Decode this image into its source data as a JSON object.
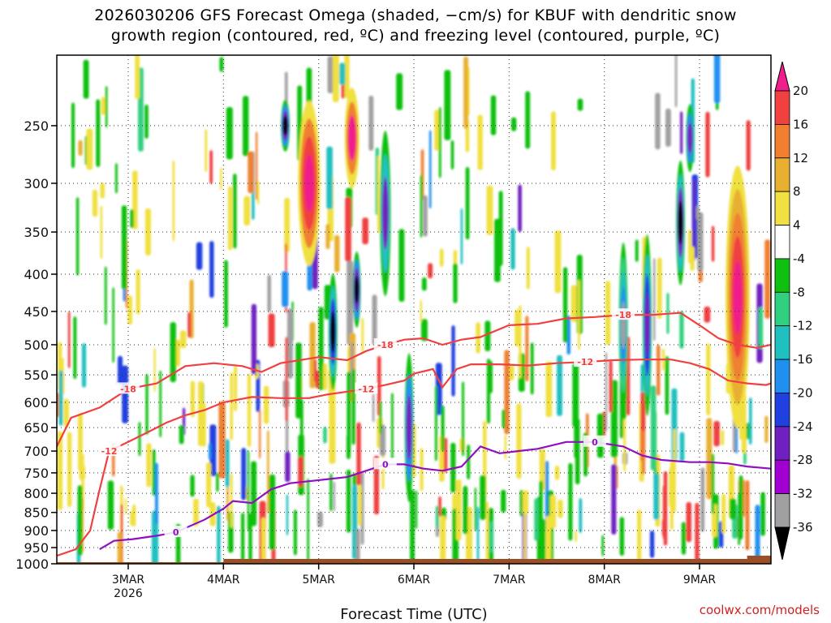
{
  "header": {
    "title_line1": "2026030206 GFS Forecast Omega (shaded, −cm/s) for KBUF with dendritic snow",
    "title_line2": "growth region (contoured, red, ºC) and freezing level (contoured, purple, ºC)"
  },
  "watermark": "coolwx.com/models",
  "chart_data": {
    "type": "heatmap",
    "title": "2026030206 GFS Forecast Omega (shaded, −cm/s) for KBUF with dendritic snow growth region (contoured, red, ºC) and freezing level (contoured, purple, ºC)",
    "xlabel": "Forecast Time (UTC)",
    "ylabel": "",
    "x_ticks": [
      {
        "label": "3MAR",
        "sub": "2026",
        "day": 3
      },
      {
        "label": "4MAR",
        "sub": "",
        "day": 4
      },
      {
        "label": "5MAR",
        "sub": "",
        "day": 5
      },
      {
        "label": "6MAR",
        "sub": "",
        "day": 6
      },
      {
        "label": "7MAR",
        "sub": "",
        "day": 7
      },
      {
        "label": "8MAR",
        "sub": "",
        "day": 8
      },
      {
        "label": "9MAR",
        "sub": "",
        "day": 9
      }
    ],
    "xlim": [
      2.25,
      9.75
    ],
    "y_ticks": [
      250,
      300,
      350,
      400,
      450,
      500,
      550,
      600,
      650,
      700,
      750,
      800,
      850,
      900,
      950,
      1000
    ],
    "ylim": [
      200,
      1000
    ],
    "y_axis": "pressure (hPa, log scale, inverted)",
    "grid": "dotted",
    "colorbar": {
      "labels": [
        "20",
        "16",
        "12",
        "8",
        "4",
        "-4",
        "-8",
        "-12",
        "-16",
        "-20",
        "-24",
        "-28",
        "-32",
        "-36"
      ],
      "colors": [
        "#f01e8c",
        "#f04040",
        "#f08030",
        "#e8b030",
        "#f0e040",
        "#ffffff",
        "#10c010",
        "#30d080",
        "#20c0c0",
        "#2090f0",
        "#2040e0",
        "#7020c0",
        "#a000d0",
        "#a0a0a0",
        "#000000"
      ]
    },
    "contours": [
      {
        "name": "-18",
        "color": "#f04040",
        "label": "-18",
        "points": [
          [
            2.25,
            690
          ],
          [
            2.4,
            630
          ],
          [
            2.7,
            610
          ],
          [
            3.0,
            575
          ],
          [
            3.3,
            565
          ],
          [
            3.6,
            535
          ],
          [
            3.9,
            530
          ],
          [
            4.2,
            535
          ],
          [
            4.4,
            545
          ],
          [
            4.6,
            530
          ],
          [
            4.8,
            525
          ],
          [
            5.0,
            520
          ],
          [
            5.3,
            525
          ],
          [
            5.5,
            510
          ],
          [
            5.7,
            500
          ],
          [
            5.9,
            492
          ],
          [
            6.1,
            490
          ],
          [
            6.3,
            500
          ],
          [
            6.5,
            492
          ],
          [
            6.7,
            488
          ],
          [
            7.0,
            470
          ],
          [
            7.3,
            468
          ],
          [
            7.6,
            460
          ],
          [
            7.9,
            458
          ],
          [
            8.2,
            455
          ],
          [
            8.5,
            455
          ],
          [
            8.8,
            452
          ],
          [
            9.0,
            470
          ],
          [
            9.2,
            490
          ],
          [
            9.4,
            500
          ],
          [
            9.6,
            505
          ],
          [
            9.75,
            500
          ]
        ]
      },
      {
        "name": "-12",
        "color": "#f04040",
        "label": "-12",
        "points": [
          [
            2.25,
            975
          ],
          [
            2.45,
            955
          ],
          [
            2.6,
            900
          ],
          [
            2.7,
            790
          ],
          [
            2.8,
            700
          ],
          [
            3.0,
            680
          ],
          [
            3.2,
            660
          ],
          [
            3.4,
            640
          ],
          [
            3.6,
            625
          ],
          [
            3.8,
            615
          ],
          [
            4.0,
            600
          ],
          [
            4.3,
            590
          ],
          [
            4.6,
            592
          ],
          [
            4.9,
            592
          ],
          [
            5.1,
            585
          ],
          [
            5.3,
            580
          ],
          [
            5.5,
            575
          ],
          [
            5.7,
            568
          ],
          [
            5.9,
            560
          ],
          [
            6.0,
            548
          ],
          [
            6.2,
            540
          ],
          [
            6.3,
            572
          ],
          [
            6.45,
            540
          ],
          [
            6.6,
            532
          ],
          [
            6.9,
            532
          ],
          [
            7.2,
            534
          ],
          [
            7.5,
            530
          ],
          [
            7.8,
            528
          ],
          [
            8.1,
            525
          ],
          [
            8.4,
            524
          ],
          [
            8.7,
            524
          ],
          [
            8.9,
            530
          ],
          [
            9.1,
            540
          ],
          [
            9.3,
            560
          ],
          [
            9.5,
            565
          ],
          [
            9.7,
            568
          ],
          [
            9.75,
            565
          ]
        ]
      },
      {
        "name": "0",
        "color": "#9010c0",
        "label": "0",
        "points": [
          [
            2.7,
            955
          ],
          [
            2.85,
            930
          ],
          [
            3.05,
            925
          ],
          [
            3.3,
            915
          ],
          [
            3.5,
            905
          ],
          [
            3.8,
            870
          ],
          [
            4.0,
            840
          ],
          [
            4.1,
            820
          ],
          [
            4.3,
            825
          ],
          [
            4.5,
            790
          ],
          [
            4.7,
            775
          ],
          [
            4.9,
            770
          ],
          [
            5.1,
            765
          ],
          [
            5.3,
            760
          ],
          [
            5.5,
            745
          ],
          [
            5.7,
            730
          ],
          [
            5.9,
            730
          ],
          [
            6.1,
            740
          ],
          [
            6.3,
            745
          ],
          [
            6.5,
            735
          ],
          [
            6.7,
            690
          ],
          [
            6.9,
            705
          ],
          [
            7.1,
            700
          ],
          [
            7.3,
            695
          ],
          [
            7.6,
            680
          ],
          [
            7.9,
            680
          ],
          [
            8.2,
            690
          ],
          [
            8.4,
            710
          ],
          [
            8.6,
            720
          ],
          [
            8.9,
            725
          ],
          [
            9.1,
            725
          ],
          [
            9.3,
            728
          ],
          [
            9.5,
            735
          ],
          [
            9.75,
            740
          ]
        ]
      }
    ]
  }
}
